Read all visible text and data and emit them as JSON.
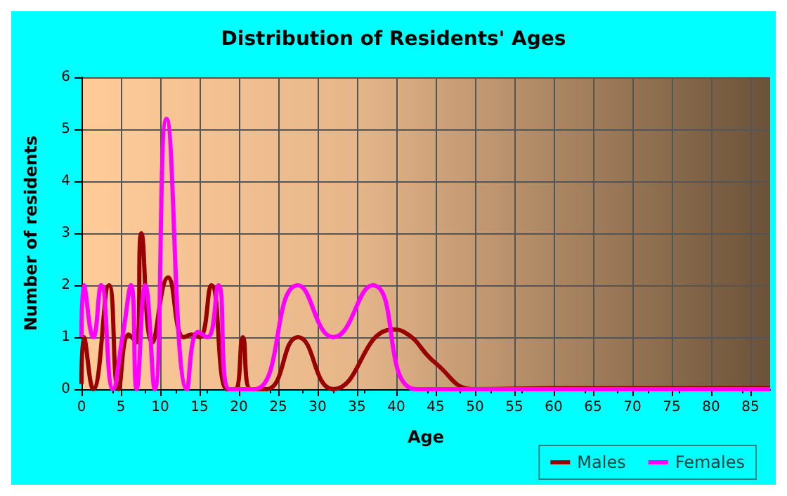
{
  "chart_data": {
    "type": "line",
    "title": "Distribution of Residents' Ages",
    "xlabel": "Age",
    "ylabel": "Number of residents",
    "xlim": [
      0,
      87.5
    ],
    "xticks": [
      0,
      5,
      10,
      15,
      20,
      25,
      30,
      35,
      40,
      45,
      50,
      55,
      60,
      65,
      70,
      75,
      80,
      85
    ],
    "ylim": [
      0,
      6
    ],
    "yticks": [
      0,
      1,
      2,
      3,
      4,
      5,
      6
    ],
    "grid": true,
    "legend": "bottom right",
    "marker": "none",
    "line_style": "solid",
    "series": [
      {
        "name": "Males",
        "color": "#990000",
        "x": [
          0,
          0.3,
          1.5,
          3.5,
          4.7,
          6,
          7,
          7.6,
          9,
          11,
          13,
          14,
          15,
          16.5,
          18.5,
          19.5,
          20.5,
          21.5,
          23.5,
          27.5,
          32,
          39.5,
          41,
          45,
          50,
          60,
          70,
          87.5
        ],
        "values": [
          0.1,
          1,
          0,
          2,
          0,
          1.05,
          0.9,
          3,
          0.9,
          2.15,
          1,
          1.05,
          1,
          2,
          0,
          0,
          1,
          0,
          0,
          1,
          0,
          1.15,
          1.1,
          0.5,
          0,
          0.02,
          0.02,
          0.02
        ]
      },
      {
        "name": "Females",
        "color": "#ff00ff",
        "x": [
          0,
          0.3,
          1.5,
          2.5,
          4,
          5.2,
          6.3,
          7,
          8.1,
          9.3,
          10.8,
          13.4,
          14.8,
          16,
          17.4,
          18.8,
          22,
          27.5,
          32,
          37,
          42.5,
          50,
          60,
          87.5
        ],
        "values": [
          1,
          2,
          1,
          2,
          0,
          1,
          2,
          0,
          2,
          0,
          5.2,
          0,
          1.1,
          1,
          2,
          0,
          0,
          2,
          1,
          2,
          0,
          0,
          0,
          0
        ]
      }
    ]
  }
}
